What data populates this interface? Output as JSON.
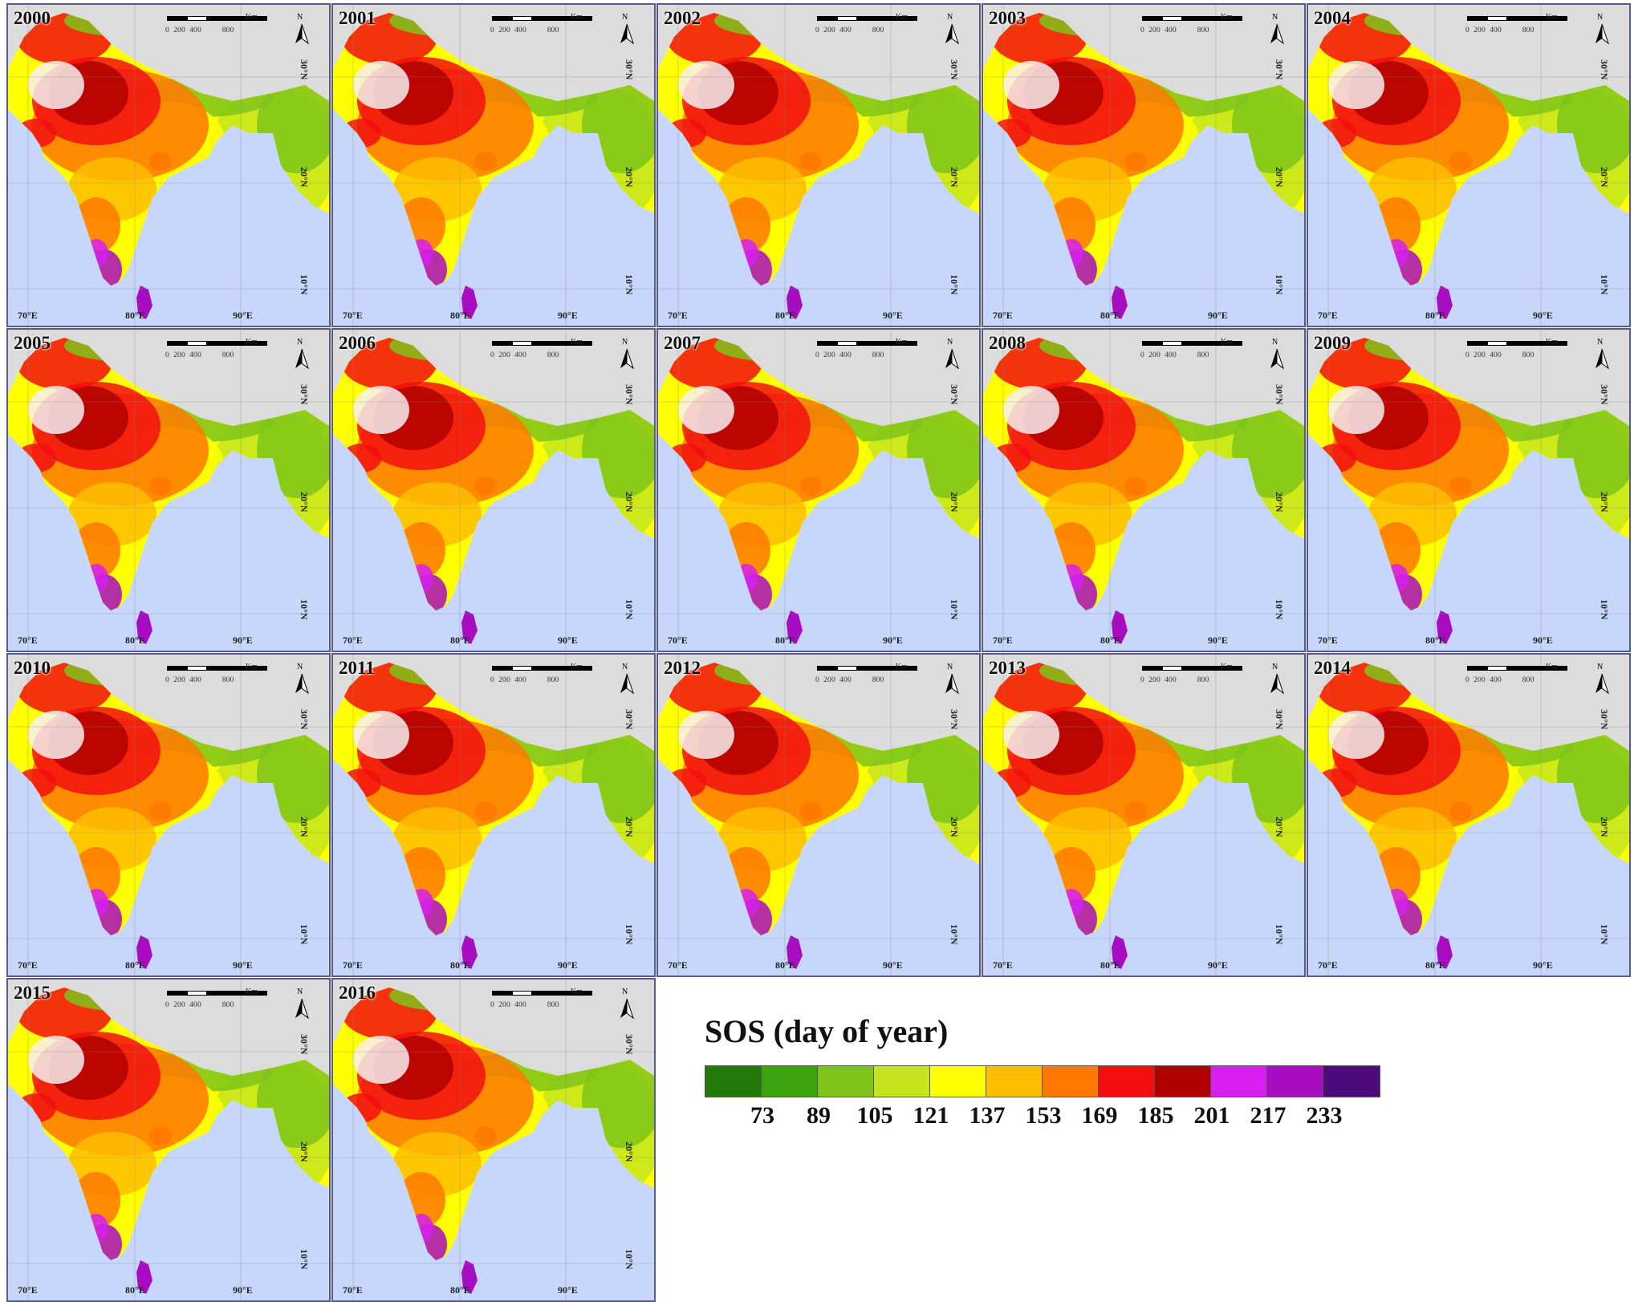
{
  "figure": {
    "panels": [
      {
        "year": "2000"
      },
      {
        "year": "2001"
      },
      {
        "year": "2002"
      },
      {
        "year": "2003"
      },
      {
        "year": "2004"
      },
      {
        "year": "2005"
      },
      {
        "year": "2006"
      },
      {
        "year": "2007"
      },
      {
        "year": "2008"
      },
      {
        "year": "2009"
      },
      {
        "year": "2010"
      },
      {
        "year": "2011"
      },
      {
        "year": "2012"
      },
      {
        "year": "2013"
      },
      {
        "year": "2014"
      },
      {
        "year": "2015"
      },
      {
        "year": "2016"
      }
    ],
    "map_labels": {
      "scale_unit": "Km",
      "scale_ticks": [
        "0",
        "200",
        "400",
        "800"
      ],
      "north": "N",
      "longitudes": [
        "70°E",
        "80°E",
        "90°E"
      ],
      "latitudes": [
        "30°N",
        "20°N",
        "10°N"
      ]
    },
    "colors": {
      "ocean": "#c6d7fb",
      "outside_land": "#dcdcdc",
      "no_data": "#f6eef0"
    }
  },
  "legend": {
    "title": "SOS (day of year)",
    "classes": [
      {
        "color": "#237a08"
      },
      {
        "color": "#3aa30e"
      },
      {
        "color": "#7ec41a"
      },
      {
        "color": "#c6e51f"
      },
      {
        "color": "#ffff00"
      },
      {
        "color": "#ffbd00"
      },
      {
        "color": "#ff7800"
      },
      {
        "color": "#f20e0e"
      },
      {
        "color": "#b00000"
      },
      {
        "color": "#d61ff0"
      },
      {
        "color": "#a80cc0"
      },
      {
        "color": "#4c0a7a"
      }
    ],
    "tick_labels": [
      "73",
      "89",
      "105",
      "121",
      "137",
      "153",
      "169",
      "185",
      "201",
      "217",
      "233"
    ]
  }
}
